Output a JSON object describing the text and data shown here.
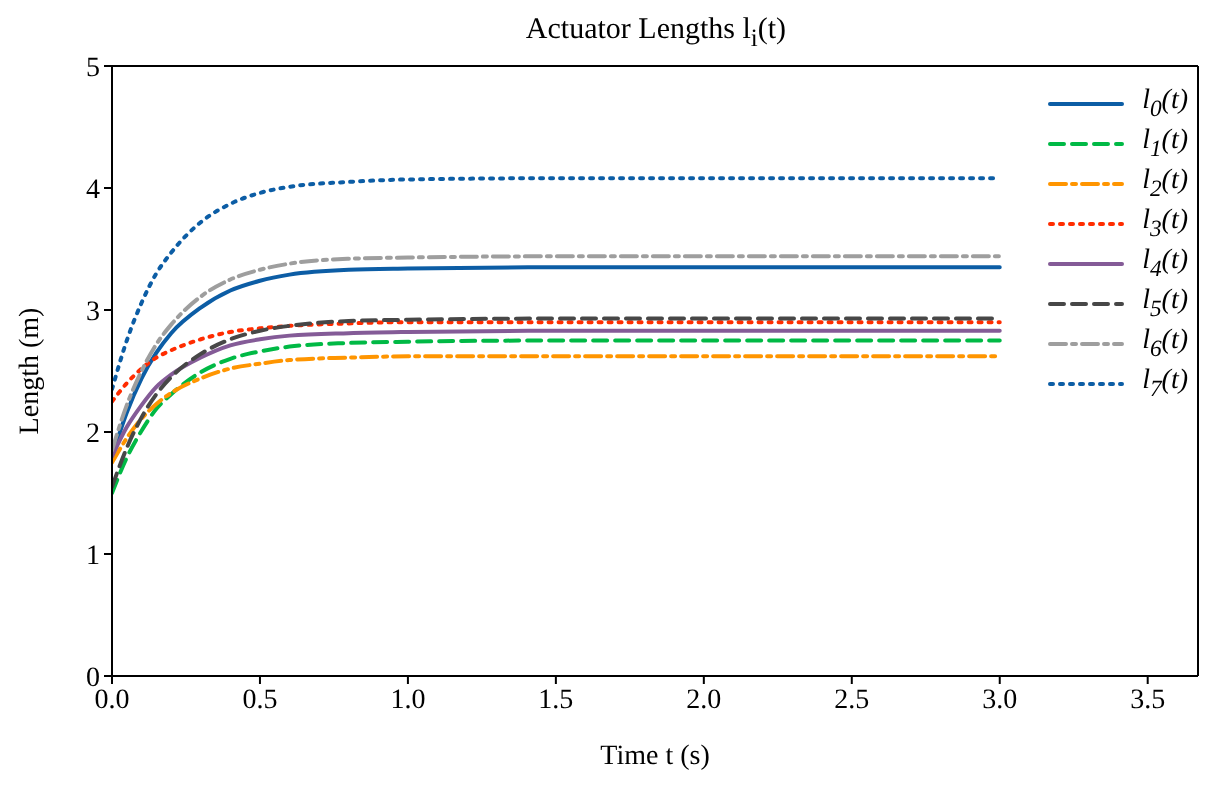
{
  "chart_data": {
    "type": "line",
    "title": "Actuator Lengths l$_{i}$(t)",
    "xlabel": "Time t (s)",
    "ylabel": "Length (m)",
    "x": [
      0,
      0.05,
      0.1,
      0.15,
      0.2,
      0.3,
      0.4,
      0.5,
      0.6,
      0.8,
      1.0,
      1.5,
      2.0,
      3.0
    ],
    "xlim": [
      0,
      3.67
    ],
    "xticks": [
      {
        "value": 0,
        "label": "0.0"
      },
      0.5,
      {
        "value": 1,
        "label": "1.0"
      },
      1.5,
      {
        "value": 2,
        "label": "2.0"
      },
      2.5,
      {
        "value": 3,
        "label": "3.0"
      },
      3.5
    ],
    "ylim": [
      0,
      5
    ],
    "yticks": [
      0,
      1,
      2,
      3,
      4,
      5
    ],
    "grid": false,
    "legend": "top right",
    "marker": "none",
    "series": [
      {
        "name": "l$_{0}$(t)",
        "color": "#0c5da5",
        "line_style": "solid",
        "values": [
          1.8,
          2.16,
          2.44,
          2.65,
          2.81,
          3.02,
          3.16,
          3.24,
          3.29,
          3.33,
          3.34,
          3.35,
          3.35,
          3.35
        ]
      },
      {
        "name": "l$_{1}$(t)",
        "color": "#00b945",
        "line_style": "dashed",
        "values": [
          1.5,
          1.79,
          2.01,
          2.19,
          2.31,
          2.49,
          2.6,
          2.66,
          2.7,
          2.73,
          2.74,
          2.75,
          2.75,
          2.75
        ]
      },
      {
        "name": "l$_{2}$(t)",
        "color": "#ff9500",
        "line_style": "dashdot",
        "values": [
          1.75,
          1.95,
          2.11,
          2.23,
          2.32,
          2.44,
          2.52,
          2.56,
          2.59,
          2.61,
          2.62,
          2.62,
          2.62,
          2.62
        ]
      },
      {
        "name": "l$_{3}$(t)",
        "color": "#ff2c00",
        "line_style": "dotted",
        "values": [
          2.25,
          2.4,
          2.52,
          2.61,
          2.67,
          2.76,
          2.82,
          2.85,
          2.87,
          2.89,
          2.9,
          2.9,
          2.9,
          2.9
        ]
      },
      {
        "name": "l$_{4}$(t)",
        "color": "#845b97",
        "line_style": "solid",
        "values": [
          1.8,
          2.04,
          2.22,
          2.37,
          2.47,
          2.61,
          2.71,
          2.76,
          2.79,
          2.81,
          2.82,
          2.83,
          2.83,
          2.83
        ]
      },
      {
        "name": "l$_{5}$(t)",
        "color": "#474747",
        "line_style": "dashed",
        "values": [
          1.55,
          1.87,
          2.12,
          2.31,
          2.45,
          2.64,
          2.76,
          2.83,
          2.87,
          2.91,
          2.92,
          2.93,
          2.93,
          2.93
        ]
      },
      {
        "name": "l$_{6}$(t)",
        "color": "#9e9e9e",
        "line_style": "dashdot",
        "values": [
          1.85,
          2.22,
          2.5,
          2.72,
          2.88,
          3.11,
          3.25,
          3.33,
          3.38,
          3.42,
          3.43,
          3.44,
          3.44,
          3.44
        ]
      },
      {
        "name": "l$_{7}$(t)",
        "color": "#0c5da5",
        "line_style": "dotted",
        "values": [
          2.35,
          2.75,
          3.06,
          3.3,
          3.47,
          3.72,
          3.87,
          3.96,
          4.01,
          4.05,
          4.07,
          4.08,
          4.08,
          4.08
        ]
      }
    ]
  }
}
